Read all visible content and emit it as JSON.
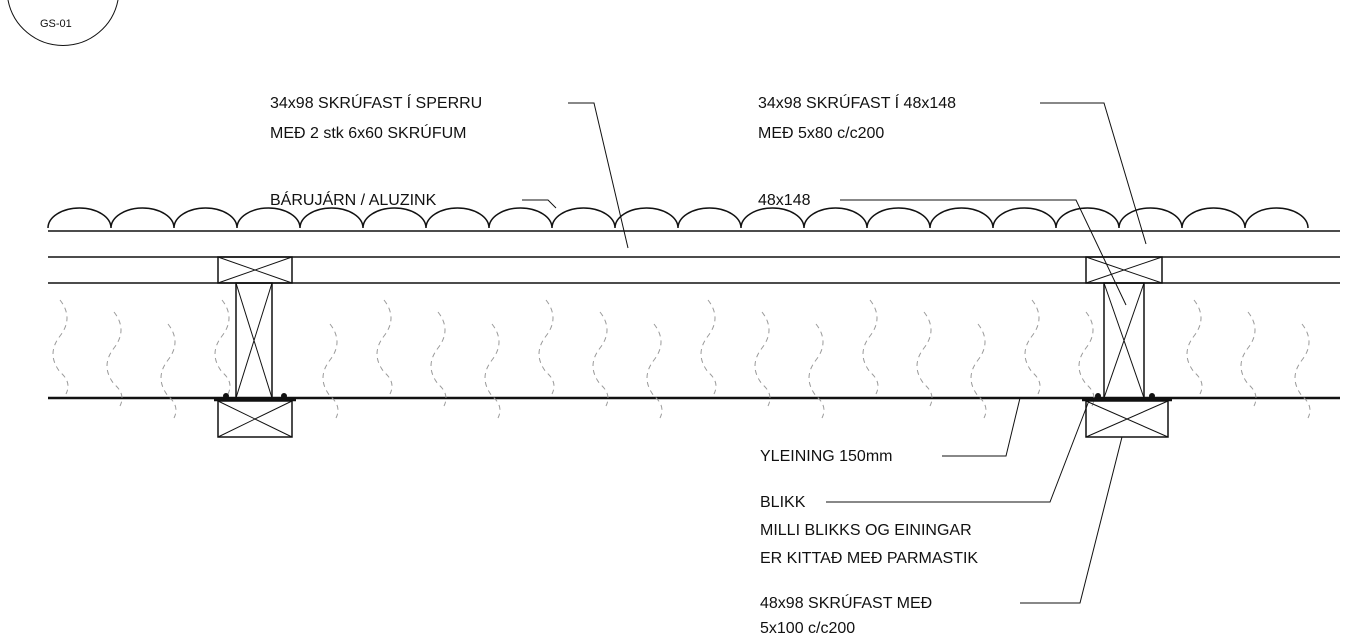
{
  "detail_tag": {
    "label": "GS-01"
  },
  "labels": {
    "batten_rafter_line1": "34x98 SKRÚFAST Í SPERRU",
    "batten_rafter_line2": "MEÐ 2 stk 6x60 SKRÚFUM",
    "corrugated": "BÁRUJÁRN / ALUZINK",
    "batten_joist_line1": "34x98 SKRÚFAST Í 48x148",
    "batten_joist_line2": "MEÐ 5x80 c/c200",
    "joist": "48x148",
    "panel": "YLEINING 150mm",
    "flashing_line1": "BLIKK",
    "flashing_line2": "MILLI BLIKKS OG EININGAR",
    "flashing_line3": "ER KITTAÐ MEÐ PARMASTIK",
    "lower_batten_line1": "48x98 SKRÚFAST MEÐ",
    "lower_batten_line2": "5x100 c/c200"
  },
  "colors": {
    "line": "#111111",
    "insulation": "#9a9a9a",
    "background": "#ffffff"
  }
}
